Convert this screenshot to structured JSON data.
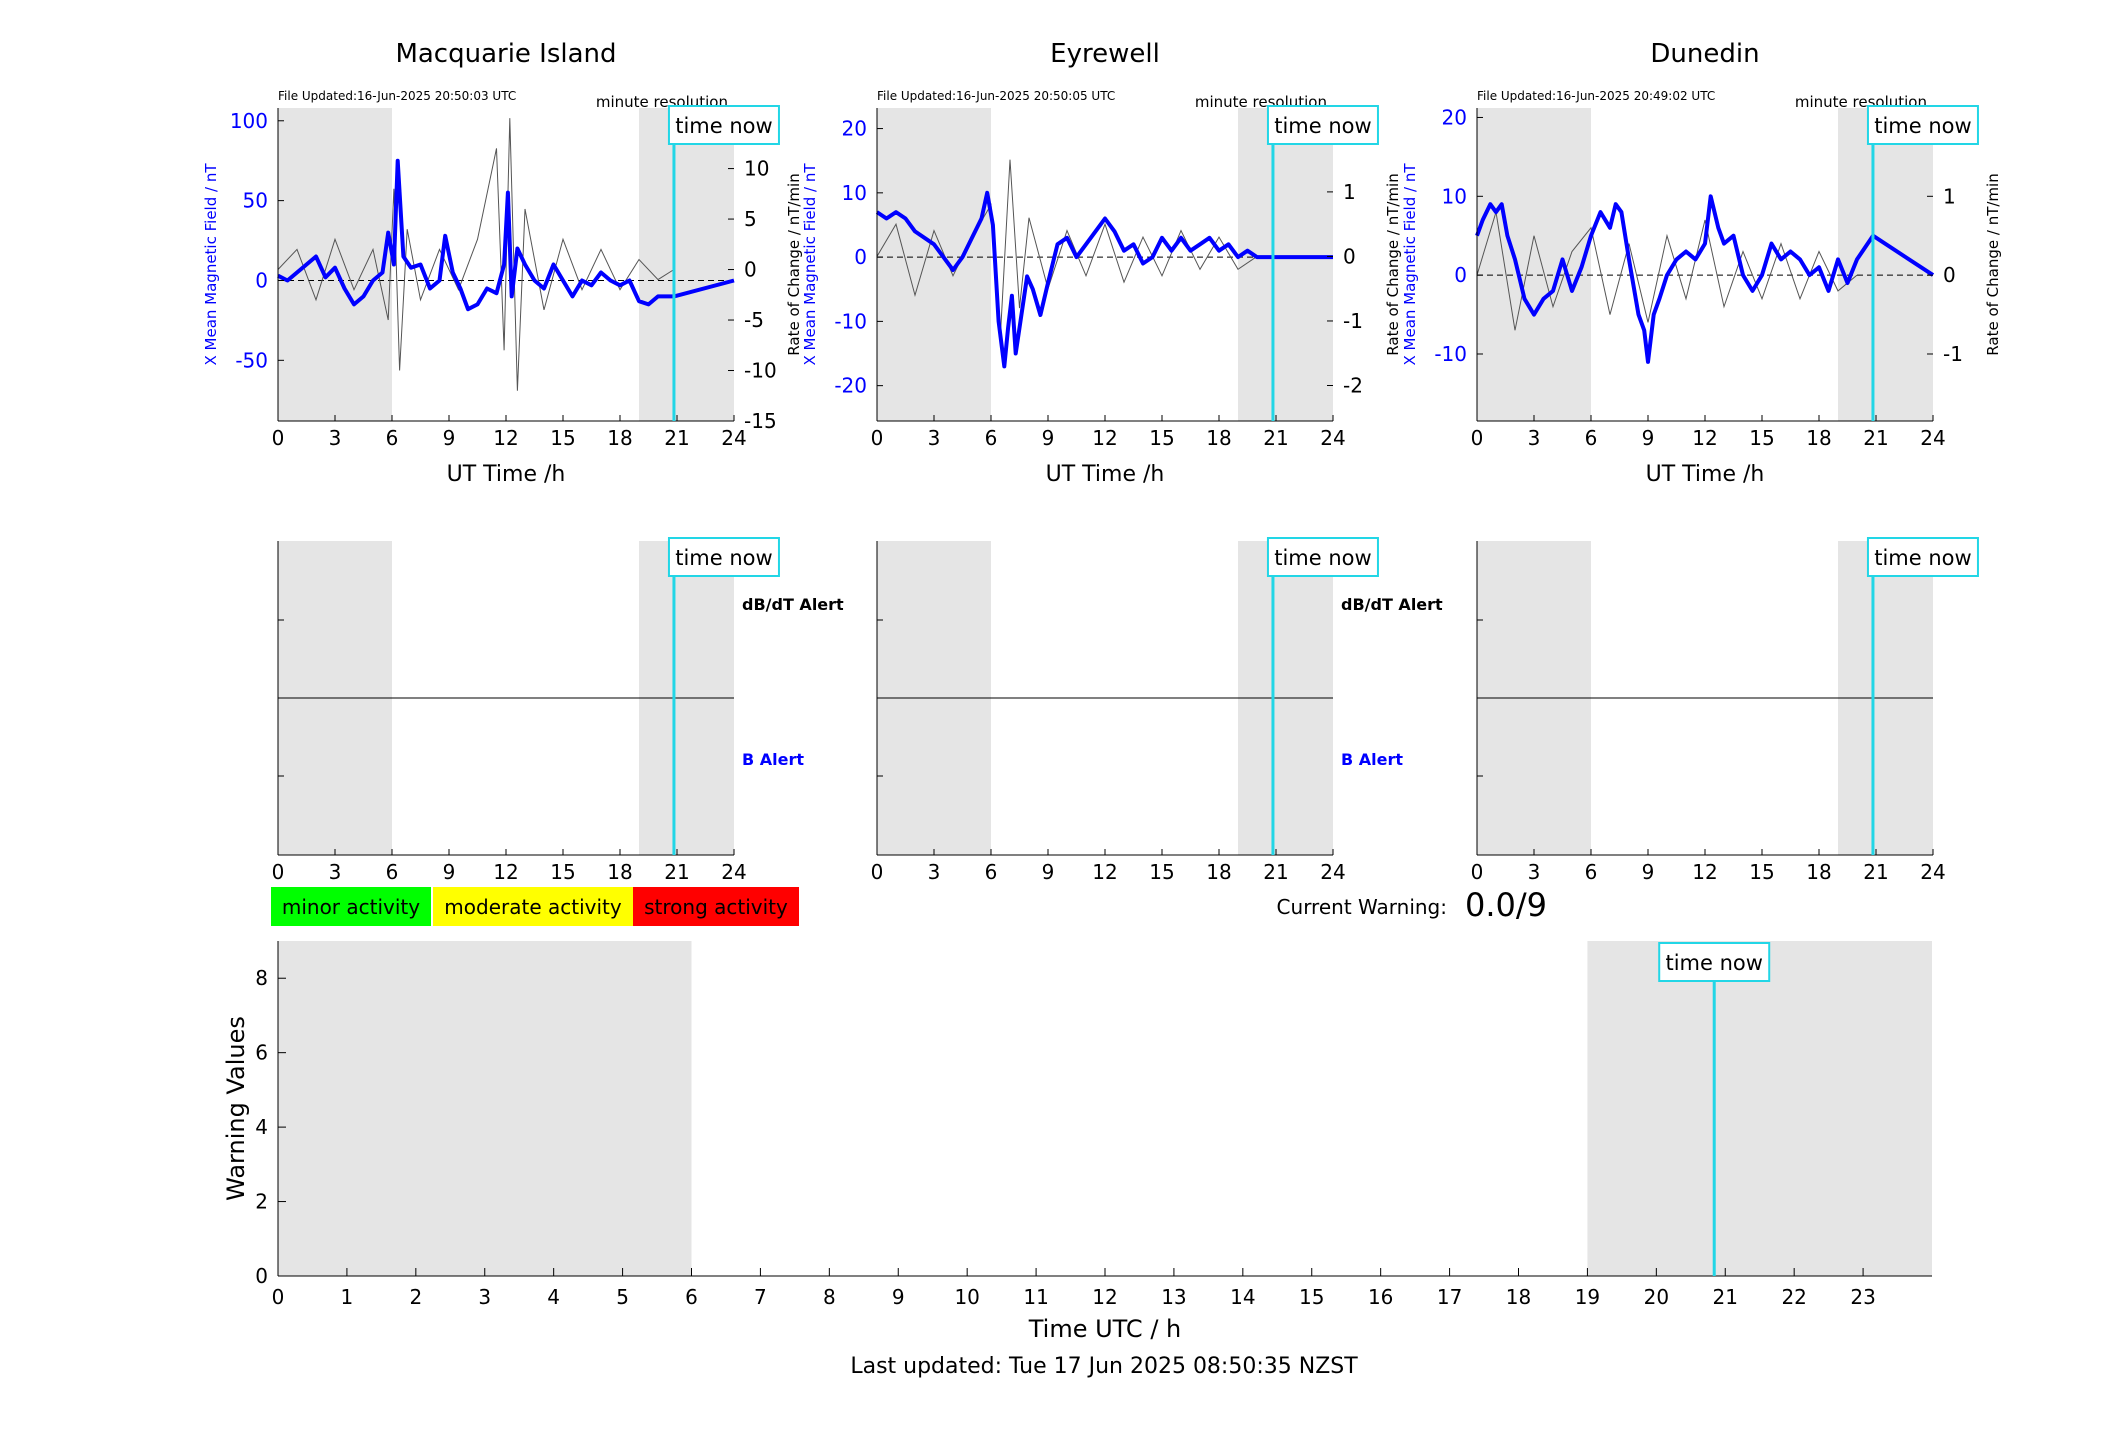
{
  "footer": {
    "last_updated": "Last updated: Tue 17 Jun 2025 08:50:35 NZST"
  },
  "legend": {
    "minor": "minor activity",
    "moderate": "moderate activity",
    "strong": "strong activity"
  },
  "warning": {
    "label": "Current Warning:",
    "value": "0.0/9"
  },
  "colors": {
    "shade": "#e5e5e5",
    "now_line": "#22d6e6",
    "field": "#0000ff",
    "rate": "#555555",
    "minor": "#00ff00",
    "moderate": "#ffff00",
    "strong": "#ff0000"
  },
  "chart_data": [
    {
      "type": "line",
      "title": "Macquarie Island",
      "file_updated": "File Updated:16-Jun-2025 20:50:03 UTC",
      "resolution": "minute resolution",
      "now_label": "time now",
      "time_now": 20.84,
      "shaded": [
        [
          0,
          6
        ],
        [
          19,
          24
        ]
      ],
      "xlabel": "UT Time /h",
      "xlim": [
        0,
        24
      ],
      "xticks": [
        "0",
        "3",
        "6",
        "9",
        "12",
        "15",
        "18",
        "21",
        "24"
      ],
      "ylabel_left": "X Mean Magnetic Field / nT",
      "ylim_left": [
        -88,
        108
      ],
      "yticks_left": [
        "-50",
        "0",
        "50",
        "100"
      ],
      "ylabel_right": "Rate of Change / nT/min",
      "ylim_right": [
        -15,
        16
      ],
      "yticks_right": [
        "-15",
        "-10",
        "-5",
        "0",
        "5",
        "10",
        "15"
      ],
      "series": [
        {
          "kind": "field",
          "x": [
            0,
            0.5,
            1,
            1.5,
            2,
            2.5,
            3,
            3.5,
            4,
            4.5,
            5,
            5.5,
            5.8,
            6.1,
            6.3,
            6.6,
            7,
            7.5,
            8,
            8.5,
            8.8,
            9.2,
            9.6,
            10,
            10.5,
            11,
            11.5,
            11.9,
            12.1,
            12.3,
            12.6,
            13,
            13.5,
            14,
            14.5,
            15,
            15.5,
            16,
            16.5,
            17,
            17.5,
            18,
            18.5,
            19,
            19.5,
            20,
            20.5,
            20.84,
            24
          ],
          "values": [
            3,
            0,
            5,
            10,
            15,
            2,
            8,
            -5,
            -15,
            -10,
            0,
            5,
            30,
            10,
            75,
            15,
            8,
            10,
            -5,
            0,
            28,
            5,
            -5,
            -18,
            -15,
            -5,
            -8,
            10,
            55,
            -10,
            20,
            10,
            0,
            -5,
            10,
            0,
            -10,
            0,
            -3,
            5,
            0,
            -3,
            0,
            -13,
            -15,
            -10,
            -10,
            -10,
            0
          ]
        },
        {
          "kind": "rate",
          "x": [
            0,
            1,
            2,
            3,
            4,
            5,
            5.8,
            6.1,
            6.4,
            6.8,
            7.5,
            8.5,
            9.5,
            10.5,
            11.5,
            11.9,
            12.2,
            12.6,
            13,
            14,
            15,
            16,
            17,
            18,
            19,
            20,
            20.84
          ],
          "values": [
            0,
            2,
            -3,
            3,
            -2,
            2,
            -5,
            8,
            -10,
            4,
            -3,
            2,
            -2,
            3,
            12,
            -8,
            15,
            -12,
            6,
            -4,
            3,
            -2,
            2,
            -2,
            1,
            -1,
            0
          ]
        }
      ],
      "alerts": {
        "now_label": "time now",
        "db_label": "dB/dT Alert",
        "b_label": "B Alert"
      }
    },
    {
      "type": "line",
      "title": "Eyrewell",
      "file_updated": "File Updated:16-Jun-2025 20:50:05 UTC",
      "resolution": "minute resolution",
      "now_label": "time now",
      "time_now": 20.84,
      "shaded": [
        [
          0,
          6
        ],
        [
          19,
          24
        ]
      ],
      "xlabel": "UT Time /h",
      "xlim": [
        0,
        24
      ],
      "xticks": [
        "0",
        "3",
        "6",
        "9",
        "12",
        "15",
        "18",
        "21",
        "24"
      ],
      "ylabel_left": "X Mean Magnetic Field / nT",
      "ylim_left": [
        -25.5,
        23.2
      ],
      "yticks_left": [
        "-20",
        "-10",
        "0",
        "10",
        "20"
      ],
      "ylabel_right": "Rate of Change / nT/min",
      "ylim_right": [
        -2.55,
        2.3
      ],
      "yticks_right": [
        "-2",
        "-1",
        "0",
        "1",
        "2"
      ],
      "series": [
        {
          "kind": "field",
          "x": [
            0,
            0.5,
            1,
            1.5,
            2,
            3,
            4,
            4.5,
            5,
            5.5,
            5.8,
            6.1,
            6.4,
            6.7,
            6.9,
            7.1,
            7.3,
            7.6,
            7.9,
            8.2,
            8.6,
            9,
            9.5,
            10,
            10.5,
            11,
            11.5,
            12,
            12.5,
            13,
            13.5,
            14,
            14.5,
            15,
            15.5,
            16,
            16.5,
            17,
            17.5,
            18,
            18.5,
            19,
            19.5,
            20,
            20.84,
            24
          ],
          "values": [
            7,
            6,
            7,
            6,
            4,
            2,
            -2,
            0,
            3,
            6,
            10,
            5,
            -10,
            -17,
            -11,
            -6,
            -15,
            -9,
            -3,
            -5,
            -9,
            -4,
            2,
            3,
            0,
            2,
            4,
            6,
            4,
            1,
            2,
            -1,
            0,
            3,
            1,
            3,
            1,
            2,
            3,
            1,
            2,
            0,
            1,
            0,
            0,
            0
          ]
        },
        {
          "kind": "rate",
          "x": [
            0,
            1,
            2,
            3,
            4,
            5,
            6,
            6.5,
            7,
            7.5,
            8,
            9,
            10,
            11,
            12,
            13,
            14,
            15,
            16,
            17,
            18,
            19,
            20
          ],
          "values": [
            0,
            0.5,
            -0.6,
            0.4,
            -0.3,
            0.3,
            0.8,
            -1.2,
            1.5,
            -0.8,
            0.6,
            -0.5,
            0.4,
            -0.3,
            0.5,
            -0.4,
            0.3,
            -0.3,
            0.4,
            -0.2,
            0.3,
            -0.2,
            0
          ]
        }
      ],
      "alerts": {
        "now_label": "time now",
        "db_label": "dB/dT Alert",
        "b_label": "B Alert"
      }
    },
    {
      "type": "line",
      "title": "Dunedin",
      "file_updated": "File Updated:16-Jun-2025 20:49:02 UTC",
      "resolution": "minute resolution",
      "now_label": "time now",
      "time_now": 20.84,
      "shaded": [
        [
          0,
          6
        ],
        [
          19,
          24
        ]
      ],
      "xlabel": "UT Time /h",
      "xlim": [
        0,
        24
      ],
      "xticks": [
        "0",
        "3",
        "6",
        "9",
        "12",
        "15",
        "18",
        "21",
        "24"
      ],
      "ylabel_left": "X Mean Magnetic Field / nT",
      "ylim_left": [
        -18.5,
        21.2
      ],
      "yticks_left": [
        "-10",
        "0",
        "10",
        "20"
      ],
      "ylabel_right": "Rate of Change / nT/min",
      "ylim_right": [
        -1.85,
        2.12
      ],
      "yticks_right": [
        "-1",
        "0",
        "1",
        "2"
      ],
      "series": [
        {
          "kind": "field",
          "x": [
            0,
            0.3,
            0.7,
            1,
            1.3,
            1.6,
            2,
            2.5,
            3,
            3.5,
            4,
            4.5,
            5,
            5.5,
            6,
            6.5,
            7,
            7.3,
            7.6,
            8,
            8.5,
            8.8,
            9,
            9.3,
            9.6,
            10,
            10.5,
            11,
            11.5,
            12,
            12.3,
            12.7,
            13,
            13.5,
            14,
            14.5,
            15,
            15.5,
            16,
            16.5,
            17,
            17.5,
            18,
            18.5,
            19,
            19.5,
            20,
            20.84,
            24
          ],
          "values": [
            5,
            7,
            9,
            8,
            9,
            5,
            2,
            -3,
            -5,
            -3,
            -2,
            2,
            -2,
            1,
            5,
            8,
            6,
            9,
            8,
            2,
            -5,
            -7,
            -11,
            -5,
            -3,
            0,
            2,
            3,
            2,
            4,
            10,
            6,
            4,
            5,
            0,
            -2,
            0,
            4,
            2,
            3,
            2,
            0,
            1,
            -2,
            2,
            -1,
            2,
            5,
            0
          ]
        },
        {
          "kind": "rate",
          "x": [
            0,
            1,
            2,
            3,
            4,
            5,
            6,
            7,
            8,
            9,
            10,
            11,
            12,
            13,
            14,
            15,
            16,
            17,
            18,
            19,
            20
          ],
          "values": [
            0,
            0.8,
            -0.7,
            0.5,
            -0.4,
            0.3,
            0.6,
            -0.5,
            0.4,
            -0.6,
            0.5,
            -0.3,
            0.7,
            -0.4,
            0.3,
            -0.3,
            0.4,
            -0.3,
            0.3,
            -0.2,
            0
          ]
        }
      ],
      "alerts": {
        "now_label": "time now"
      }
    },
    {
      "type": "line",
      "ylabel": "Warning Values",
      "xlabel": "Time UTC / h",
      "xlim": [
        0,
        24
      ],
      "xticks": [
        "0",
        "1",
        "2",
        "3",
        "4",
        "5",
        "6",
        "7",
        "8",
        "9",
        "10",
        "11",
        "12",
        "13",
        "14",
        "15",
        "16",
        "17",
        "18",
        "19",
        "20",
        "21",
        "22",
        "23"
      ],
      "ylim": [
        0,
        9
      ],
      "yticks": [
        "0",
        "2",
        "4",
        "6",
        "8"
      ],
      "shaded": [
        [
          0,
          6
        ],
        [
          19,
          24
        ]
      ],
      "now_label": "time now",
      "time_now": 20.84,
      "values": []
    }
  ]
}
